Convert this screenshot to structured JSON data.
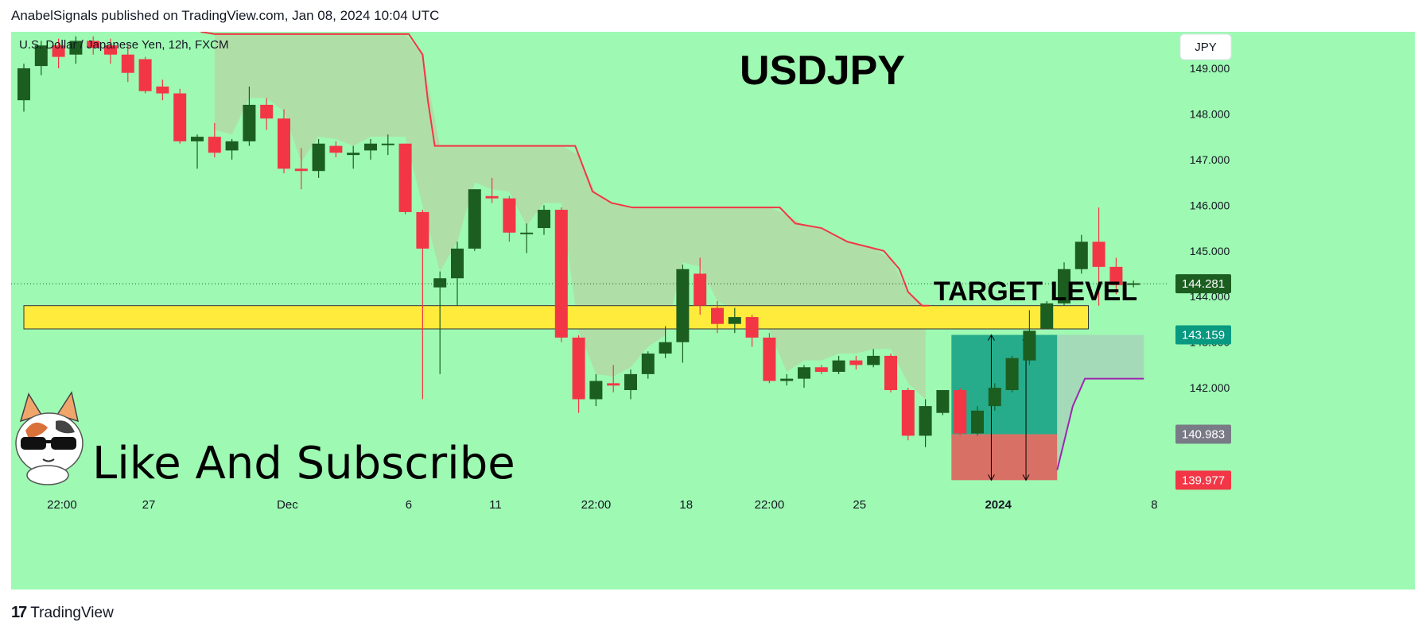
{
  "header": {
    "publisher_line": "AnabelSignals published on TradingView.com, Jan 08, 2024 10:04 UTC"
  },
  "footer": {
    "logo_glyph": "17",
    "brand": "TradingView"
  },
  "colors": {
    "background": "#9ef9b3",
    "bull": "#1b5e20",
    "bear": "#f23645",
    "resistance_line": "#f23645",
    "support_line": "#9c27b0",
    "cloud_fill": "#b3d9a4",
    "target_zone": "#ffeb3b",
    "long_profit": "#089981",
    "long_stop": "#f23645",
    "projection_fill": "#a5d6b8"
  },
  "chart_data": {
    "type": "candlestick",
    "symbol_line": "U.S. Dollar / Japanese Yen, 12h, FXCM",
    "title": "USDJPY",
    "currency_button": "JPY",
    "annotation": "TARGET LEVEL",
    "watermark_text": "Like And Subscribe",
    "ylim": [
      139.6,
      149.8
    ],
    "y_ticks": [
      "149.000",
      "148.000",
      "147.000",
      "146.000",
      "145.000",
      "144.000",
      "143.000",
      "142.000"
    ],
    "x_ticks": [
      {
        "label": "22:00",
        "i": 2.2,
        "bold": false
      },
      {
        "label": "27",
        "i": 7.2,
        "bold": false
      },
      {
        "label": "Dec",
        "i": 15.2,
        "bold": false
      },
      {
        "label": "6",
        "i": 22.2,
        "bold": false
      },
      {
        "label": "11",
        "i": 27.2,
        "bold": false
      },
      {
        "label": "22:00",
        "i": 33.0,
        "bold": false
      },
      {
        "label": "18",
        "i": 38.2,
        "bold": false
      },
      {
        "label": "22:00",
        "i": 43.0,
        "bold": false
      },
      {
        "label": "25",
        "i": 48.2,
        "bold": false
      },
      {
        "label": "2024",
        "i": 56.2,
        "bold": true
      },
      {
        "label": "8",
        "i": 65.2,
        "bold": false
      }
    ],
    "price_labels": [
      {
        "value": 144.281,
        "text": "144.281",
        "bg": "#1b5e20",
        "fg": "#ffffff"
      },
      {
        "value": 143.159,
        "text": "143.159",
        "bg": "#089981",
        "fg": "#ffffff"
      },
      {
        "value": 140.983,
        "text": "140.983",
        "bg": "#787b86",
        "fg": "#ffffff"
      },
      {
        "value": 139.977,
        "text": "139.977",
        "bg": "#f23645",
        "fg": "#ffffff"
      }
    ],
    "last_price": 144.281,
    "target_zone": {
      "top": 143.8,
      "bottom": 143.29,
      "from_i": 0,
      "to_i": 61.4
    },
    "long_position": {
      "entry": 140.983,
      "target": 143.159,
      "stop": 139.977,
      "from_i": 53.5,
      "to_i": 59.6,
      "arrows_i": [
        55.8,
        57.8
      ]
    },
    "projection": {
      "from_i": 59.6,
      "to_i": 64.6,
      "top": 143.159,
      "bottom_start": 140.2,
      "bottom_end": 142.2
    },
    "resistance_line": [
      [
        10.2,
        149.8
      ],
      [
        11.0,
        149.75
      ],
      [
        22.2,
        149.75
      ],
      [
        23.0,
        149.3
      ],
      [
        23.3,
        148.3
      ],
      [
        23.7,
        147.3
      ],
      [
        31.8,
        147.3
      ],
      [
        32.8,
        146.3
      ],
      [
        33.9,
        146.05
      ],
      [
        35.1,
        145.95
      ],
      [
        43.6,
        145.95
      ],
      [
        44.5,
        145.6
      ],
      [
        46.0,
        145.5
      ],
      [
        47.5,
        145.2
      ],
      [
        49.6,
        145.0
      ],
      [
        50.5,
        144.6
      ],
      [
        51.0,
        144.1
      ],
      [
        51.8,
        143.8
      ],
      [
        52.2,
        143.8
      ]
    ],
    "support_line": [
      [
        59.6,
        140.2
      ],
      [
        60.5,
        141.6
      ],
      [
        61.2,
        142.2
      ],
      [
        64.6,
        142.2
      ]
    ],
    "candles": [
      [
        148.3,
        149.0,
        148.05,
        149.1
      ],
      [
        149.05,
        149.5,
        148.85,
        149.6
      ],
      [
        149.5,
        149.25,
        149.0,
        149.65
      ],
      [
        149.3,
        149.6,
        149.1,
        149.7
      ],
      [
        149.6,
        149.45,
        149.3,
        149.7
      ],
      [
        149.5,
        149.3,
        149.1,
        149.65
      ],
      [
        149.3,
        148.9,
        148.7,
        149.5
      ],
      [
        149.2,
        148.5,
        148.45,
        149.25
      ],
      [
        148.6,
        148.45,
        148.3,
        148.75
      ],
      [
        148.45,
        147.4,
        147.35,
        148.55
      ],
      [
        147.4,
        147.5,
        146.8,
        147.55
      ],
      [
        147.5,
        147.15,
        147.05,
        147.8
      ],
      [
        147.2,
        147.4,
        147.0,
        147.45
      ],
      [
        147.4,
        148.2,
        147.3,
        148.6
      ],
      [
        148.2,
        147.9,
        147.65,
        148.35
      ],
      [
        147.9,
        146.8,
        146.7,
        148.1
      ],
      [
        146.8,
        146.75,
        146.35,
        147.25
      ],
      [
        146.75,
        147.35,
        146.6,
        147.45
      ],
      [
        147.3,
        147.15,
        147.05,
        147.4
      ],
      [
        147.1,
        147.15,
        146.8,
        147.3
      ],
      [
        147.2,
        147.35,
        147.0,
        147.45
      ],
      [
        147.35,
        147.35,
        147.1,
        147.55
      ],
      [
        147.35,
        145.85,
        145.8,
        147.35
      ],
      [
        145.85,
        145.05,
        141.75,
        145.9
      ],
      [
        144.2,
        144.4,
        142.3,
        144.55
      ],
      [
        144.4,
        145.05,
        143.8,
        145.2
      ],
      [
        145.05,
        146.35,
        145.0,
        146.35
      ],
      [
        146.2,
        146.15,
        146.05,
        146.6
      ],
      [
        146.15,
        145.4,
        145.2,
        146.2
      ],
      [
        145.4,
        145.4,
        144.95,
        145.6
      ],
      [
        145.5,
        145.9,
        145.35,
        146.0
      ],
      [
        145.9,
        143.1,
        143.0,
        145.95
      ],
      [
        143.1,
        141.75,
        141.45,
        143.15
      ],
      [
        141.75,
        142.15,
        141.6,
        142.3
      ],
      [
        142.1,
        142.05,
        141.9,
        142.5
      ],
      [
        141.95,
        142.3,
        141.75,
        142.4
      ],
      [
        142.3,
        142.75,
        142.2,
        142.8
      ],
      [
        142.75,
        143.0,
        142.65,
        143.35
      ],
      [
        143.0,
        144.6,
        142.55,
        144.7
      ],
      [
        144.5,
        143.8,
        143.6,
        144.85
      ],
      [
        143.75,
        143.4,
        143.2,
        143.9
      ],
      [
        143.4,
        143.55,
        143.2,
        143.75
      ],
      [
        143.55,
        143.1,
        142.9,
        143.6
      ],
      [
        143.1,
        142.15,
        142.1,
        143.2
      ],
      [
        142.15,
        142.2,
        142.05,
        142.3
      ],
      [
        142.2,
        142.45,
        142.0,
        142.5
      ],
      [
        142.45,
        142.35,
        142.3,
        142.5
      ],
      [
        142.35,
        142.6,
        142.3,
        142.7
      ],
      [
        142.6,
        142.5,
        142.4,
        142.7
      ],
      [
        142.5,
        142.7,
        142.45,
        142.85
      ],
      [
        142.7,
        141.95,
        141.9,
        142.75
      ],
      [
        141.95,
        140.95,
        140.85,
        142.0
      ],
      [
        140.95,
        141.6,
        140.7,
        141.75
      ],
      [
        141.45,
        141.95,
        141.4,
        141.95
      ],
      [
        141.95,
        141.0,
        140.95,
        142.0
      ],
      [
        141.0,
        141.5,
        140.95,
        141.6
      ],
      [
        141.6,
        142.0,
        141.5,
        142.1
      ],
      [
        141.95,
        142.65,
        141.9,
        142.7
      ],
      [
        142.6,
        143.25,
        142.5,
        143.7
      ],
      [
        143.3,
        143.85,
        143.3,
        143.9
      ],
      [
        143.85,
        144.6,
        143.8,
        144.75
      ],
      [
        144.6,
        145.2,
        144.5,
        145.35
      ],
      [
        145.2,
        144.65,
        143.8,
        145.95
      ],
      [
        144.65,
        144.25,
        144.05,
        144.85
      ],
      [
        144.28,
        144.29,
        144.2,
        144.35
      ]
    ]
  }
}
